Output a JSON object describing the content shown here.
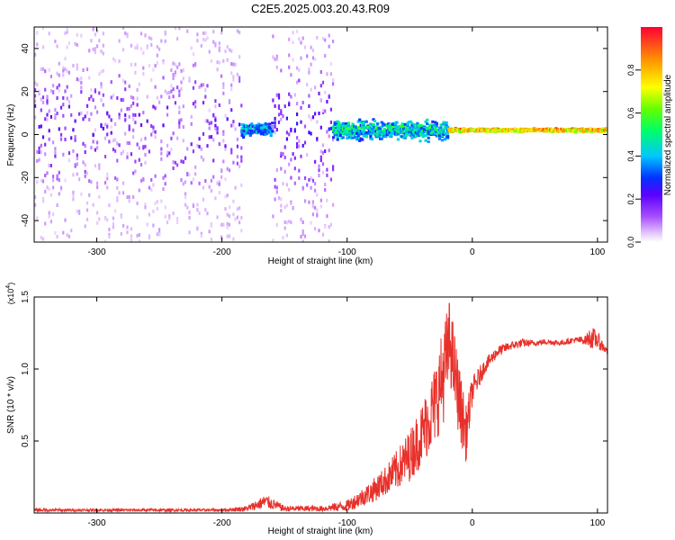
{
  "title": "C2E5.2025.003.20.43.R09",
  "chart_data": [
    {
      "type": "heatmap",
      "title": "C2E5.2025.003.20.43.R09",
      "xlabel": "Height of straight line (km)",
      "ylabel": "Frequency (Hz)",
      "xlim": [
        -350,
        108
      ],
      "ylim": [
        -50,
        50
      ],
      "xticks": [
        -300,
        -200,
        -100,
        0,
        100
      ],
      "yticks": [
        -40,
        -20,
        0,
        20,
        40
      ],
      "description_of_pattern": [
        {
          "x_range": [
            -350,
            -185
          ],
          "freq_spread": 50,
          "amplitude": [
            0.0,
            0.25
          ]
        },
        {
          "x_range": [
            -185,
            -160
          ],
          "freq_spread": 8,
          "amplitude": [
            0.1,
            0.5
          ]
        },
        {
          "x_range": [
            -160,
            -112
          ],
          "freq_spread": 50,
          "amplitude": [
            0.0,
            0.3
          ]
        },
        {
          "x_range": [
            -112,
            -20
          ],
          "freq_spread": 12,
          "amplitude": [
            0.1,
            0.6
          ]
        },
        {
          "x_range": [
            -20,
            108
          ],
          "freq_spread": 2,
          "amplitude": [
            0.4,
            1.0
          ]
        }
      ],
      "colorbar": {
        "label": "Normalized spectral amplitude",
        "range": [
          0.0,
          1.0
        ],
        "ticks": [
          "0.0",
          "0.2",
          "0.4",
          "0.6",
          "0.8"
        ],
        "tick_values": [
          0.0,
          0.2,
          0.4,
          0.6,
          0.8
        ]
      }
    },
    {
      "type": "line",
      "xlabel": "Height of straight line (km)",
      "ylabel": "SNR (10 * v/v)",
      "exponent_label": "(x10",
      "exponent_value": "4",
      "exponent_close": ")",
      "xlim": [
        -350,
        108
      ],
      "ylim": [
        0,
        1.5
      ],
      "xticks": [
        -300,
        -200,
        -100,
        0,
        100
      ],
      "yticks": [
        "0.5",
        "1.0",
        "1.5"
      ],
      "ytick_values": [
        0.5,
        1.0,
        1.5
      ],
      "series": [
        {
          "name": "SNR",
          "color": "#e8302a",
          "x": [
            -350,
            -300,
            -250,
            -200,
            -180,
            -165,
            -150,
            -120,
            -100,
            -90,
            -80,
            -70,
            -60,
            -50,
            -40,
            -30,
            -22,
            -18,
            -10,
            -5,
            0,
            10,
            20,
            30,
            40,
            50,
            60,
            70,
            80,
            90,
            95,
            100,
            108
          ],
          "y": [
            0.02,
            0.02,
            0.02,
            0.02,
            0.03,
            0.08,
            0.03,
            0.03,
            0.05,
            0.1,
            0.15,
            0.22,
            0.3,
            0.4,
            0.55,
            0.75,
            1.0,
            1.2,
            0.75,
            0.55,
            0.85,
            1.02,
            1.12,
            1.16,
            1.18,
            1.18,
            1.19,
            1.18,
            1.2,
            1.2,
            1.22,
            1.2,
            1.12
          ],
          "noise": [
            0.01,
            0.01,
            0.01,
            0.01,
            0.02,
            0.05,
            0.02,
            0.02,
            0.04,
            0.06,
            0.08,
            0.1,
            0.14,
            0.18,
            0.22,
            0.28,
            0.35,
            0.3,
            0.25,
            0.2,
            0.1,
            0.05,
            0.04,
            0.03,
            0.03,
            0.02,
            0.02,
            0.02,
            0.02,
            0.03,
            0.08,
            0.06,
            0.02
          ]
        }
      ]
    }
  ]
}
